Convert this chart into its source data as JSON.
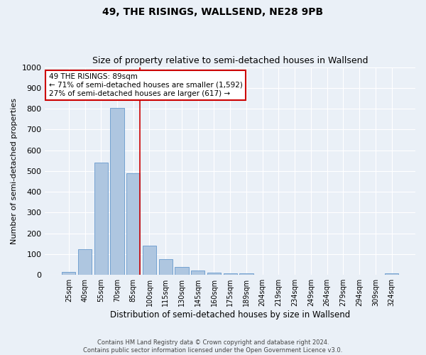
{
  "title1": "49, THE RISINGS, WALLSEND, NE28 9PB",
  "title2": "Size of property relative to semi-detached houses in Wallsend",
  "xlabel": "Distribution of semi-detached houses by size in Wallsend",
  "ylabel": "Number of semi-detached properties",
  "bin_labels": [
    "25sqm",
    "40sqm",
    "55sqm",
    "70sqm",
    "85sqm",
    "100sqm",
    "115sqm",
    "130sqm",
    "145sqm",
    "160sqm",
    "175sqm",
    "189sqm",
    "204sqm",
    "219sqm",
    "234sqm",
    "249sqm",
    "264sqm",
    "279sqm",
    "294sqm",
    "309sqm",
    "324sqm"
  ],
  "bar_values": [
    15,
    125,
    540,
    805,
    490,
    140,
    75,
    40,
    22,
    12,
    8,
    8,
    0,
    0,
    0,
    0,
    0,
    0,
    0,
    0,
    8
  ],
  "bar_color": "#aec6e0",
  "bar_edge_color": "#6699cc",
  "vline_color": "#cc0000",
  "vline_bin_index": 4,
  "annotation_text": "49 THE RISINGS: 89sqm\n← 71% of semi-detached houses are smaller (1,592)\n27% of semi-detached houses are larger (617) →",
  "annotation_box_color": "#ffffff",
  "annotation_box_edge": "#cc0000",
  "ylim": [
    0,
    1000
  ],
  "yticks": [
    0,
    100,
    200,
    300,
    400,
    500,
    600,
    700,
    800,
    900,
    1000
  ],
  "bg_color": "#eaf0f7",
  "grid_color": "#ffffff",
  "title1_fontsize": 10,
  "title2_fontsize": 9,
  "footer1": "Contains HM Land Registry data © Crown copyright and database right 2024.",
  "footer2": "Contains public sector information licensed under the Open Government Licence v3.0."
}
